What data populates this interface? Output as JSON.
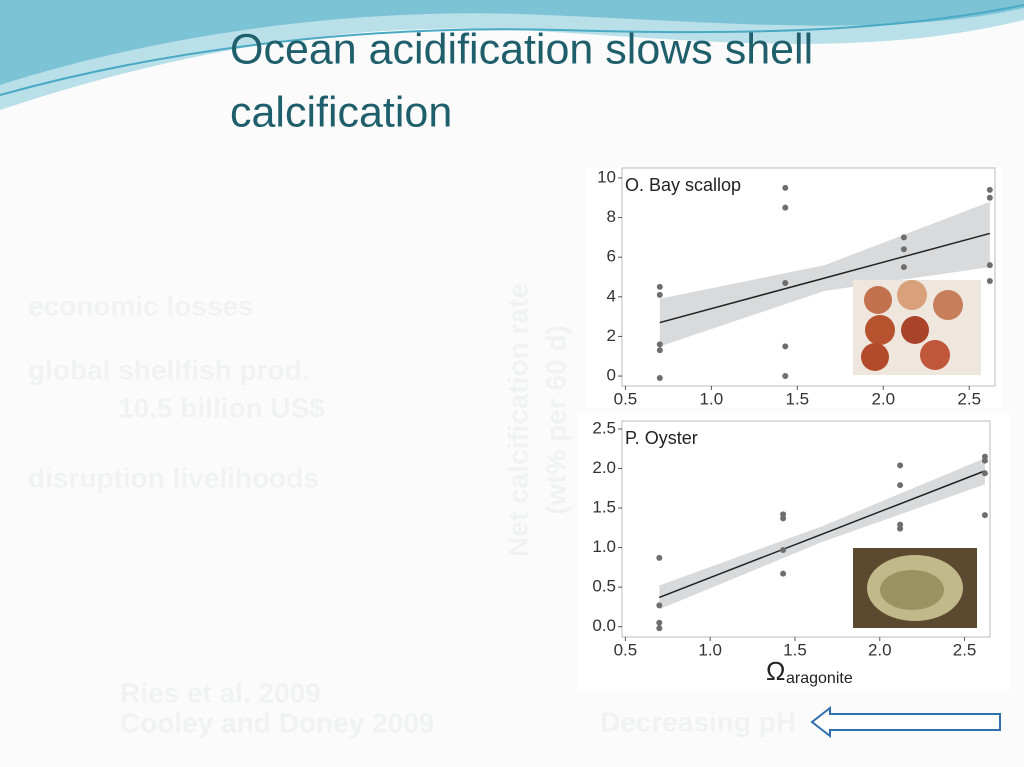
{
  "title": "Ocean acidification slows shell calcification",
  "bullets": [
    "economic losses",
    "global shellfish prod.",
    "10.5  billion US$",
    "disruption livelihoods"
  ],
  "references": [
    "Ries et al. 2009",
    "Cooley and Doney 2009"
  ],
  "ylabel": "Net calcification rate",
  "ylabel_units": "(wt% per 60 d)",
  "arrow_label": "Decreasing pH",
  "chart_data": [
    {
      "type": "scatter",
      "title": "O. Bay scallop",
      "color": "#6e6e6e",
      "x": [
        0.7,
        0.7,
        0.7,
        0.7,
        0.7,
        1.43,
        1.43,
        1.43,
        1.43,
        1.43,
        2.12,
        2.12,
        2.12,
        2.62,
        2.62,
        2.62,
        2.62
      ],
      "values": [
        4.5,
        4.1,
        1.6,
        1.3,
        -0.1,
        9.5,
        8.5,
        4.7,
        1.5,
        0,
        7.0,
        6.4,
        5.5,
        9.4,
        9.0,
        5.6,
        4.8
      ],
      "fit": {
        "x": [
          0.7,
          1.66,
          2.62
        ],
        "values": [
          2.7,
          4.95,
          7.2
        ],
        "lower": [
          1.5,
          4.3,
          5.5
        ],
        "upper": [
          3.9,
          5.6,
          8.8
        ]
      },
      "xlim": [
        0.48,
        2.65
      ],
      "ylim": [
        -0.3,
        10.3
      ],
      "xticks": [
        0.5,
        {
          "value": 1,
          "label": "1.0"
        },
        1.5,
        {
          "value": 2,
          "label": "2.0"
        },
        2.5
      ],
      "yticks": [
        0,
        2,
        4,
        6,
        8,
        10
      ],
      "grid": false
    },
    {
      "type": "scatter",
      "title": "P. Oyster",
      "color": "#6e6e6e",
      "x": [
        0.7,
        0.7,
        0.7,
        0.7,
        1.43,
        1.43,
        1.43,
        1.43,
        2.12,
        2.12,
        2.12,
        2.12,
        2.62,
        2.62,
        2.62,
        2.62
      ],
      "values": [
        0.87,
        0.27,
        0.05,
        -0.02,
        1.42,
        1.37,
        0.97,
        0.67,
        2.04,
        1.79,
        1.29,
        1.24,
        2.15,
        2.1,
        1.94,
        1.41
      ],
      "fit": {
        "x": [
          0.7,
          1.66,
          2.62
        ],
        "values": [
          0.37,
          1.17,
          1.97
        ],
        "lower": [
          0.22,
          1.07,
          1.8
        ],
        "upper": [
          0.52,
          1.27,
          2.13
        ]
      },
      "xlim": [
        0.48,
        2.65
      ],
      "ylim": [
        -0.08,
        2.55
      ],
      "xticks": [
        0.5,
        {
          "value": 1,
          "label": "1.0"
        },
        1.5,
        {
          "value": 2,
          "label": "2.0"
        },
        2.5
      ],
      "yticks": [
        {
          "value": 0,
          "label": "0.0"
        },
        0.5,
        {
          "value": 1,
          "label": "1.0"
        },
        1.5,
        {
          "value": 2,
          "label": "2.0"
        },
        2.5
      ],
      "xlabel": "Ω",
      "xlabel_sub": "aragonite",
      "grid": false
    }
  ]
}
